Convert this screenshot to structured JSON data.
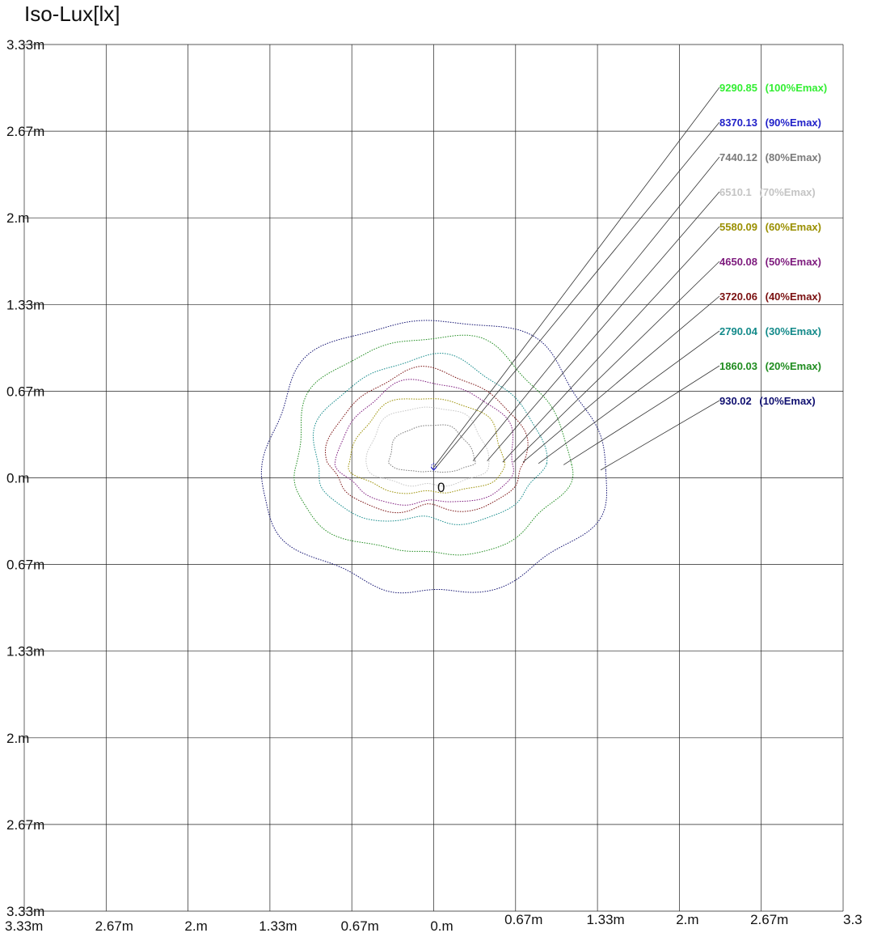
{
  "chart_data": {
    "type": "contour",
    "title": "Iso-Lux[lx]",
    "origin_label": "0",
    "y_tick_labels": [
      "3.33m",
      "2.67m",
      "2.m",
      "1.33m",
      "0.67m",
      "0.m",
      "0.67m",
      "1.33m",
      "2.m",
      "2.67m",
      "3.33m"
    ],
    "x_tick_labels": [
      "3.33m",
      "2.67m",
      "2.m",
      "1.33m",
      "0.67m",
      "0.m",
      "0.67m",
      "1.33m",
      "2.m",
      "2.67m",
      "3.3"
    ],
    "x_range": [
      -3.33,
      3.33
    ],
    "y_range": [
      -3.33,
      3.33
    ],
    "grid": true,
    "levels": [
      {
        "value": "9290.85",
        "percent": "(100%Emax)",
        "color": "#33ee33",
        "rx": 0.0,
        "ry_top": 0.0,
        "ry_bot": 0.0,
        "cx": 0.0,
        "cy": 0.08
      },
      {
        "value": "8370.13",
        "percent": "(90%Emax)",
        "color": "#1f1fc8",
        "rx": 0.02,
        "ry_top": 0.03,
        "ry_bot": 0.01,
        "cx": 0.0,
        "cy": 0.08
      },
      {
        "value": "7440.12",
        "percent": "(80%Emax)",
        "color": "#7a7a7a",
        "rx": 0.35,
        "ry_top": 0.28,
        "ry_bot": 0.09,
        "cx": -0.02,
        "cy": 0.13
      },
      {
        "value": "6510.1",
        "percent": "(70%Emax)",
        "color": "#c4c4c4",
        "rx": 0.5,
        "ry_top": 0.42,
        "ry_bot": 0.2,
        "cx": -0.05,
        "cy": 0.13
      },
      {
        "value": "5580.09",
        "percent": "(60%Emax)",
        "color": "#9a8f00",
        "rx": 0.63,
        "ry_top": 0.5,
        "ry_bot": 0.25,
        "cx": -0.05,
        "cy": 0.12
      },
      {
        "value": "4650.08",
        "percent": "(50%Emax)",
        "color": "#7d1a7d",
        "rx": 0.72,
        "ry_top": 0.62,
        "ry_bot": 0.34,
        "cx": -0.05,
        "cy": 0.12
      },
      {
        "value": "3720.06",
        "percent": "(40%Emax)",
        "color": "#7a1010",
        "rx": 0.8,
        "ry_top": 0.7,
        "ry_bot": 0.4,
        "cx": -0.05,
        "cy": 0.12
      },
      {
        "value": "2790.04",
        "percent": "(30%Emax)",
        "color": "#138a8a",
        "rx": 0.93,
        "ry_top": 0.81,
        "ry_bot": 0.48,
        "cx": -0.05,
        "cy": 0.11
      },
      {
        "value": "1860.03",
        "percent": "(20%Emax)",
        "color": "#1f8c1f",
        "rx": 1.12,
        "ry_top": 0.99,
        "ry_bot": 0.71,
        "cx": -0.03,
        "cy": 0.1
      },
      {
        "value": "930.02",
        "percent": "(10%Emax)",
        "color": "#101070",
        "rx": 1.4,
        "ry_top": 1.17,
        "ry_bot": 0.96,
        "cx": 0.0,
        "cy": 0.06
      }
    ]
  }
}
